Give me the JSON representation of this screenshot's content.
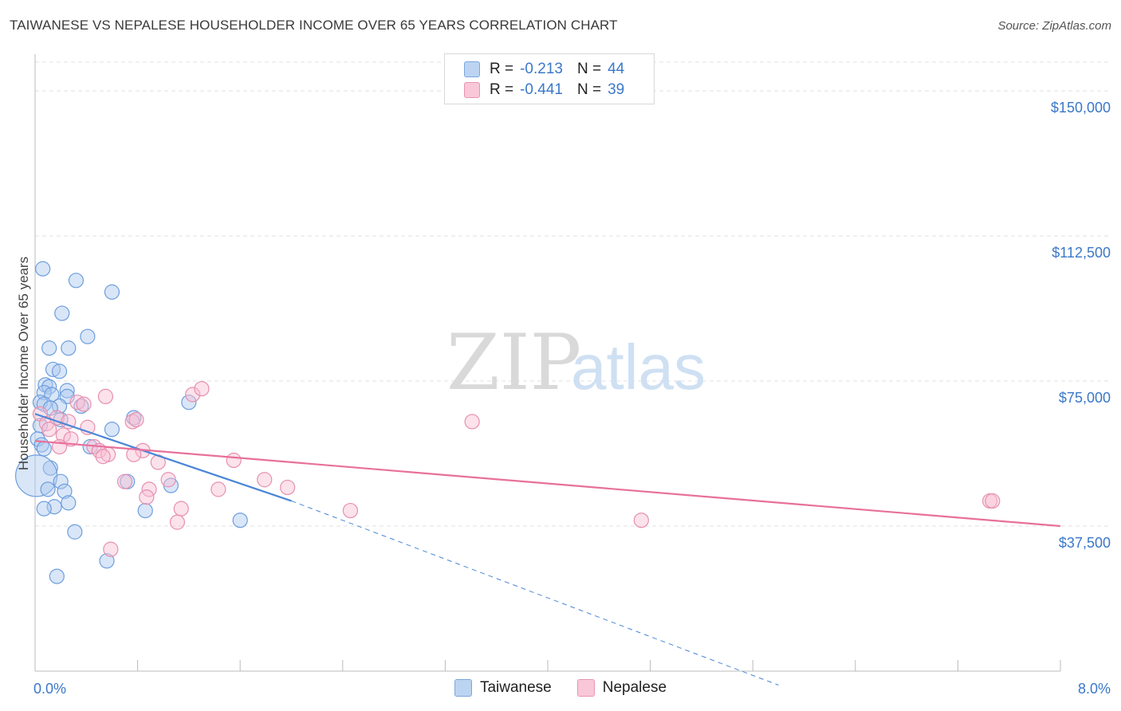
{
  "title": "TAIWANESE VS NEPALESE HOUSEHOLDER INCOME OVER 65 YEARS CORRELATION CHART",
  "source": "Source: ZipAtlas.com",
  "watermark": {
    "zip": "ZIP",
    "atlas": "atlas"
  },
  "legend": {
    "rows": [
      {
        "r_label": "R = ",
        "r_value": "-0.213",
        "n_label": "N = ",
        "n_value": "44"
      },
      {
        "r_label": "R = ",
        "r_value": "-0.441",
        "n_label": "N = ",
        "n_value": "39"
      }
    ]
  },
  "colors": {
    "taiwanese": "#4a86d6",
    "nepalese": "#e8709a",
    "tick": "#3b78c9"
  },
  "chart_data": {
    "type": "scatter",
    "title": "TAIWANESE VS NEPALESE HOUSEHOLDER INCOME OVER 65 YEARS CORRELATION CHART",
    "xlabel": "",
    "ylabel": "Householder Income Over 65 years",
    "xlim": [
      0,
      8
    ],
    "ylim": [
      0,
      157000
    ],
    "x_tick_labels": [
      "0.0%",
      "8.0%"
    ],
    "y_ticks": [
      37500,
      75000,
      112500,
      150000
    ],
    "y_tick_labels": [
      "$37,500",
      "$75,000",
      "$112,500",
      "$150,000"
    ],
    "series": [
      {
        "name": "Taiwanese",
        "color": "#4a86d6",
        "trend": {
          "x0": 0.0,
          "y0": 66500,
          "x1": 2.0,
          "y1": 44000,
          "dash_to_x": 5.8,
          "dash_to_y": -3600
        },
        "points": [
          [
            0.06,
            104000
          ],
          [
            0.32,
            101000
          ],
          [
            0.6,
            98000
          ],
          [
            0.21,
            92500
          ],
          [
            0.41,
            86500
          ],
          [
            0.11,
            83500
          ],
          [
            0.26,
            83500
          ],
          [
            0.14,
            78000
          ],
          [
            0.19,
            77500
          ],
          [
            0.08,
            74000
          ],
          [
            0.11,
            73500
          ],
          [
            0.25,
            72500
          ],
          [
            0.07,
            72000
          ],
          [
            0.13,
            71500
          ],
          [
            0.25,
            71000
          ],
          [
            0.04,
            69500
          ],
          [
            0.07,
            69000
          ],
          [
            0.19,
            68500
          ],
          [
            0.36,
            68500
          ],
          [
            0.12,
            68000
          ],
          [
            1.2,
            69500
          ],
          [
            0.2,
            65000
          ],
          [
            0.77,
            65500
          ],
          [
            0.04,
            63500
          ],
          [
            0.6,
            62500
          ],
          [
            0.02,
            60000
          ],
          [
            0.05,
            58500
          ],
          [
            0.07,
            57500
          ],
          [
            0.43,
            58000
          ],
          [
            0.12,
            52500
          ],
          [
            0.01,
            50500
          ],
          [
            0.1,
            47000
          ],
          [
            0.2,
            49000
          ],
          [
            0.23,
            46500
          ],
          [
            0.72,
            49000
          ],
          [
            1.06,
            48000
          ],
          [
            0.26,
            43500
          ],
          [
            0.15,
            42500
          ],
          [
            0.07,
            42000
          ],
          [
            0.86,
            41500
          ],
          [
            1.6,
            39000
          ],
          [
            0.31,
            36000
          ],
          [
            0.56,
            28500
          ],
          [
            0.17,
            24500
          ]
        ]
      },
      {
        "name": "Nepalese",
        "color": "#e8709a",
        "trend": {
          "x0": 0.0,
          "y0": 59500,
          "x1": 8.0,
          "y1": 37500
        },
        "points": [
          [
            0.04,
            66500
          ],
          [
            0.09,
            64000
          ],
          [
            0.17,
            65500
          ],
          [
            0.11,
            62500
          ],
          [
            0.22,
            61000
          ],
          [
            0.26,
            64500
          ],
          [
            0.33,
            69500
          ],
          [
            0.38,
            69000
          ],
          [
            0.55,
            71000
          ],
          [
            1.23,
            71500
          ],
          [
            1.3,
            73000
          ],
          [
            0.41,
            63000
          ],
          [
            0.19,
            58000
          ],
          [
            0.46,
            58000
          ],
          [
            0.5,
            57000
          ],
          [
            0.57,
            56000
          ],
          [
            0.76,
            64500
          ],
          [
            0.79,
            65000
          ],
          [
            0.84,
            57000
          ],
          [
            0.77,
            56000
          ],
          [
            0.53,
            55500
          ],
          [
            0.96,
            54000
          ],
          [
            1.55,
            54500
          ],
          [
            0.7,
            49000
          ],
          [
            0.89,
            47000
          ],
          [
            1.04,
            49500
          ],
          [
            1.43,
            47000
          ],
          [
            1.79,
            49500
          ],
          [
            1.97,
            47500
          ],
          [
            0.87,
            45000
          ],
          [
            1.14,
            42000
          ],
          [
            2.46,
            41500
          ],
          [
            1.11,
            38500
          ],
          [
            3.41,
            64500
          ],
          [
            4.73,
            39000
          ],
          [
            7.45,
            44000
          ],
          [
            7.47,
            44000
          ],
          [
            0.59,
            31500
          ],
          [
            0.28,
            60000
          ]
        ]
      }
    ]
  },
  "bottom_legend": [
    {
      "label": "Taiwanese",
      "color": "#4a86d6"
    },
    {
      "label": "Nepalese",
      "color": "#e8709a"
    }
  ]
}
